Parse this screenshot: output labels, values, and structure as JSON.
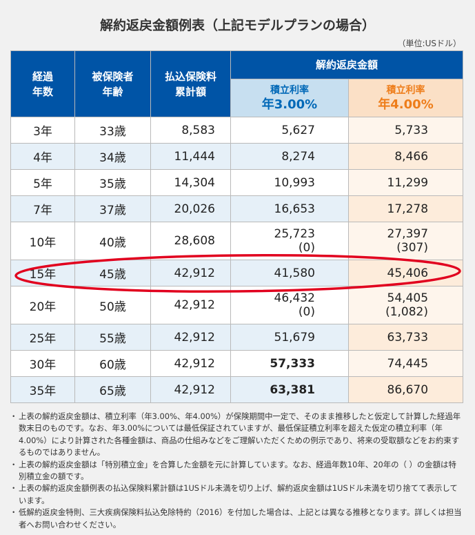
{
  "title": "解約返戻金額例表（上記モデルプランの場合）",
  "unit": "（単位:USドル）",
  "headers": {
    "year": [
      "経過",
      "年数"
    ],
    "age": [
      "被保険者",
      "年齢"
    ],
    "premium": [
      "払込保険料",
      "累計額"
    ],
    "surrender": "解約返戻金額",
    "rate1_label": "積立利率",
    "rate1_value": "年3.00%",
    "rate2_label": "積立利率",
    "rate2_value": "年4.00%"
  },
  "rows": [
    {
      "year": "3年",
      "age": "33歳",
      "premium": "8,583",
      "r3": "5,627",
      "r4": "5,733"
    },
    {
      "year": "4年",
      "age": "34歳",
      "premium": "11,444",
      "r3": "8,274",
      "r4": "8,466"
    },
    {
      "year": "5年",
      "age": "35歳",
      "premium": "14,304",
      "r3": "10,993",
      "r4": "11,299"
    },
    {
      "year": "7年",
      "age": "37歳",
      "premium": "20,026",
      "r3": "16,653",
      "r4": "17,278"
    },
    {
      "year": "10年",
      "age": "40歳",
      "premium": "28,608",
      "r3": "25,723",
      "r3_sub": "(0)",
      "r4": "27,397",
      "r4_sub": "(307)"
    },
    {
      "year": "15年",
      "age": "45歳",
      "premium": "42,912",
      "r3": "41,580",
      "r4": "45,406"
    },
    {
      "year": "20年",
      "age": "50歳",
      "premium": "42,912",
      "r3": "46,432",
      "r3_sub": "(0)",
      "r4": "54,405",
      "r4_sub": "(1,082)"
    },
    {
      "year": "25年",
      "age": "55歳",
      "premium": "42,912",
      "r3": "51,679",
      "r4": "63,733"
    },
    {
      "year": "30年",
      "age": "60歳",
      "premium": "42,912",
      "r3": "57,333",
      "r4": "74,445"
    },
    {
      "year": "35年",
      "age": "65歳",
      "premium": "42,912",
      "r3": "63,381",
      "r4": "86,670"
    }
  ],
  "colors": {
    "header_blue": "#0054a6",
    "rate1_bg": "#c7dff0",
    "rate1_text": "#0068b7",
    "rate2_bg": "#fbe0c6",
    "rate2_text": "#ee7d1a",
    "highlight_red": "#d8001a",
    "oval_red": "#e1001e"
  },
  "notes": [
    "上表の解約返戻金額は、積立利率（年3.00%、年4.00%）が保険期間中一定で、そのまま推移したと仮定して計算した経過年数末日のものです。なお、年3.00%については最低保証されていますが、最低保証積立利率を超えた仮定の積立利率（年4.00%）により計算された各種金額は、商品の仕組みなどをご理解いただくための例示であり、将来の受取額などをお約束するものではありません。",
    "上表の解約返戻金額は「特別積立金」を合算した金額を元に計算しています。なお、経過年数10年、20年の（ ）の金額は特別積立金の額です。",
    "上表の解約返戻金額例表の払込保険料累計額は1USドル未満を切り上げ、解約返戻金額は1USドル未満を切り捨てて表示しています。",
    "低解約返戻金特則、三大疾病保険料払込免除特約（2016）を付加した場合は、上記とは異なる推移となります。詳しくは担当者へお問い合わせください。"
  ]
}
